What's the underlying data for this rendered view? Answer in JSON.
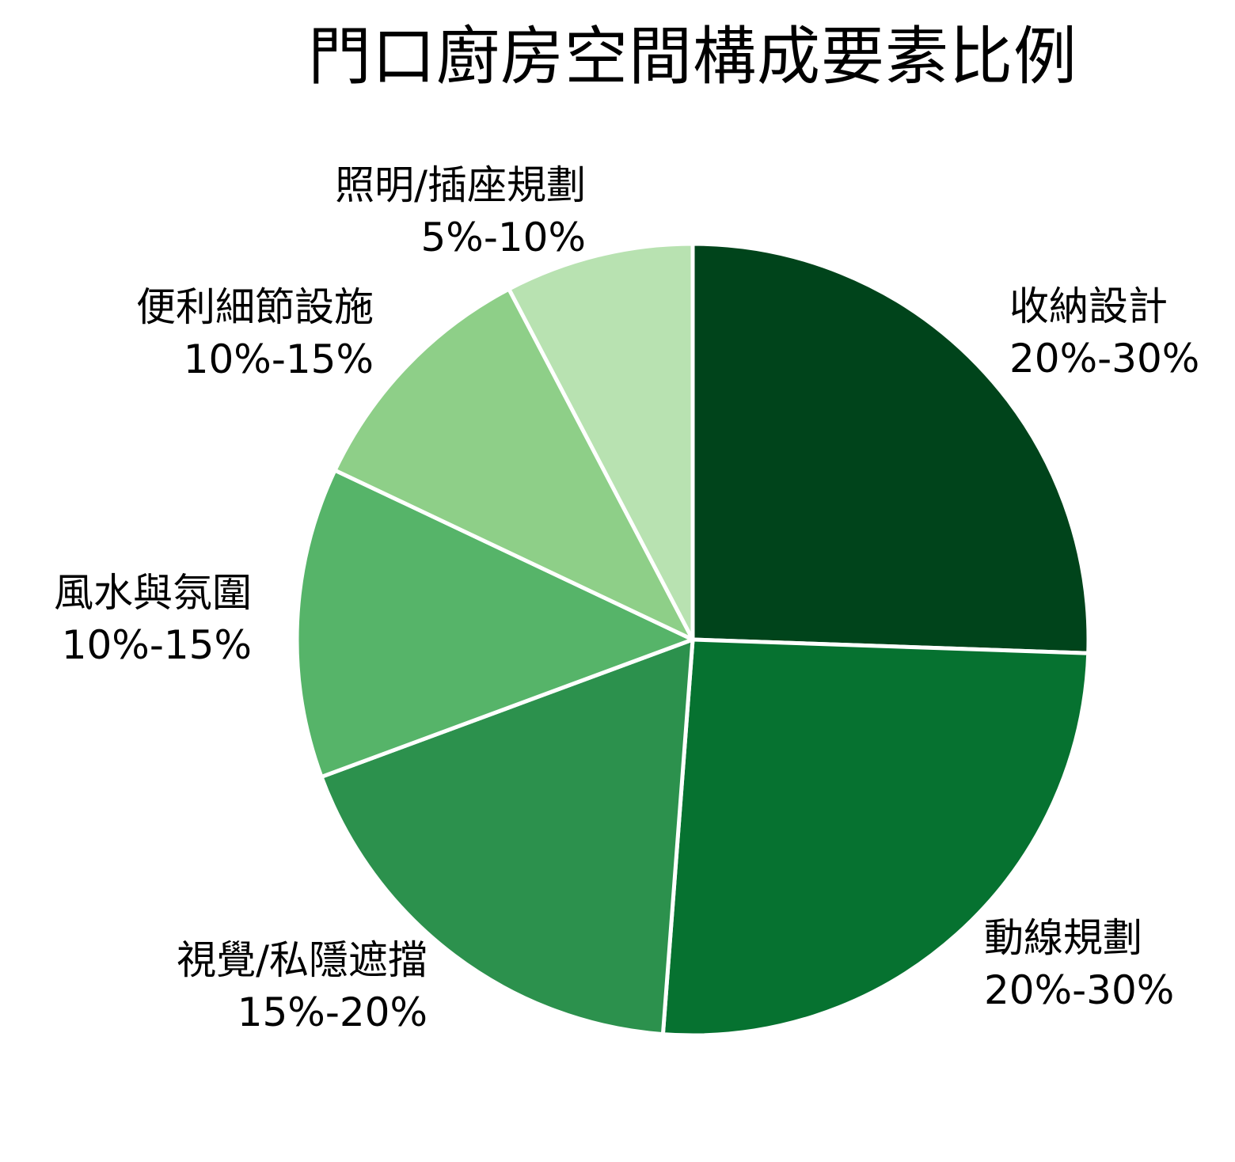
{
  "chart_data": {
    "type": "pie",
    "title": "門口廚房空間構成要素比例",
    "start_angle": "12 o'clock, clockwise",
    "legend": "none (direct labels)",
    "slices": [
      {
        "label": "收納設計",
        "range_label": "20%-30%",
        "value": 25.6,
        "color": "#00441b"
      },
      {
        "label": "動線規劃",
        "range_label": "20%-30%",
        "value": 25.7,
        "color": "#067230"
      },
      {
        "label": "視覺/私隱遮擋",
        "range_label": "15%-20%",
        "value": 18.2,
        "color": "#2c914d"
      },
      {
        "label": "風水與氛圍",
        "range_label": "10%-15%",
        "value": 12.7,
        "color": "#56b469"
      },
      {
        "label": "便利細節設施",
        "range_label": "10%-15%",
        "value": 10.3,
        "color": "#8ecf88"
      },
      {
        "label": "照明/插座規劃",
        "range_label": "5%-10%",
        "value": 7.7,
        "color": "#b8e2b1"
      }
    ]
  },
  "chart": {
    "title": "門口廚房空間構成要素比例",
    "labels": [
      {
        "name": "收納設計",
        "pct": "20%-30%"
      },
      {
        "name": "動線規劃",
        "pct": "20%-30%"
      },
      {
        "name": "視覺/私隱遮擋",
        "pct": "15%-20%"
      },
      {
        "name": "風水與氛圍",
        "pct": "10%-15%"
      },
      {
        "name": "便利細節設施",
        "pct": "10%-15%"
      },
      {
        "name": "照明/插座規劃",
        "pct": "5%-10%"
      }
    ]
  }
}
